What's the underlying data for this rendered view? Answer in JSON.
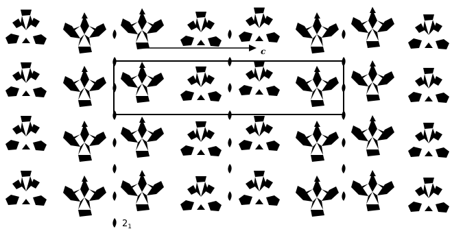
{
  "figure": {
    "axis_label": "c",
    "screw_axis_label": "2",
    "screw_axis_subscript": "1",
    "colors": {
      "molecule_a": "#e01010",
      "molecule_b": "#1a1ae0",
      "cell": "#000000"
    }
  }
}
